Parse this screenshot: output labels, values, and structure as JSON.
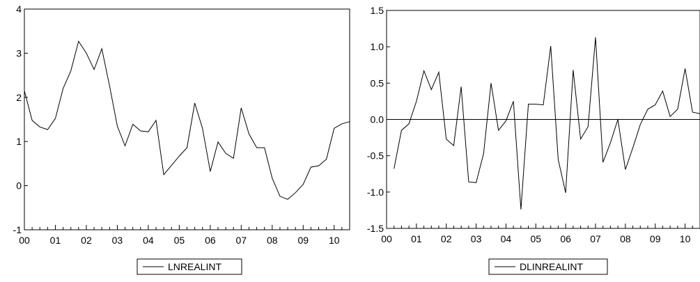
{
  "chart_data": [
    {
      "type": "line",
      "title": "",
      "xlabel": "",
      "ylabel": "",
      "ylim": [
        -1,
        4
      ],
      "y_ticks": [
        -1,
        0,
        1,
        2,
        3,
        4
      ],
      "y_tick_labels": [
        "-1",
        "0",
        "1",
        "2",
        "3",
        "4"
      ],
      "xlim": [
        0,
        10.5
      ],
      "x_ticks": [
        0,
        1,
        2,
        3,
        4,
        5,
        6,
        7,
        8,
        9,
        10
      ],
      "x_tick_labels": [
        "00",
        "01",
        "02",
        "03",
        "04",
        "05",
        "06",
        "07",
        "08",
        "09",
        "10"
      ],
      "grid": false,
      "zero_line": false,
      "legend": "bottom-center",
      "series": [
        {
          "name": "LNREALINT",
          "x": [
            0.0,
            0.25,
            0.5,
            0.75,
            1.0,
            1.25,
            1.5,
            1.75,
            2.0,
            2.25,
            2.5,
            2.75,
            3.0,
            3.25,
            3.5,
            3.75,
            4.0,
            4.25,
            4.5,
            4.75,
            5.0,
            5.25,
            5.5,
            5.75,
            6.0,
            6.25,
            6.5,
            6.75,
            7.0,
            7.25,
            7.5,
            7.75,
            8.0,
            8.25,
            8.5,
            8.75,
            9.0,
            9.25,
            9.5,
            9.75,
            10.0,
            10.25,
            10.5
          ],
          "values": [
            2.15,
            1.48,
            1.33,
            1.27,
            1.52,
            2.2,
            2.6,
            3.27,
            3.0,
            2.63,
            3.1,
            2.26,
            1.35,
            0.9,
            1.39,
            1.24,
            1.22,
            1.48,
            0.25,
            0.46,
            0.67,
            0.86,
            1.87,
            1.3,
            0.32,
            0.99,
            0.73,
            0.62,
            1.76,
            1.17,
            0.86,
            0.86,
            0.17,
            -0.24,
            -0.31,
            -0.16,
            0.03,
            0.42,
            0.45,
            0.6,
            1.3,
            1.4,
            1.45
          ]
        }
      ]
    },
    {
      "type": "line",
      "title": "",
      "xlabel": "",
      "ylabel": "",
      "ylim": [
        -1.5,
        1.5
      ],
      "y_ticks": [
        -1.5,
        -1.0,
        -0.5,
        0.0,
        0.5,
        1.0,
        1.5
      ],
      "y_tick_labels": [
        "-1.5",
        "-1.0",
        "-0.5",
        "0.0",
        "0.5",
        "1.0",
        "1.5"
      ],
      "xlim": [
        0,
        10.5
      ],
      "x_ticks": [
        0,
        1,
        2,
        3,
        4,
        5,
        6,
        7,
        8,
        9,
        10
      ],
      "x_tick_labels": [
        "00",
        "01",
        "02",
        "03",
        "04",
        "05",
        "06",
        "07",
        "08",
        "09",
        "10"
      ],
      "grid": false,
      "zero_line": true,
      "legend": "bottom-center",
      "series": [
        {
          "name": "DLINREALINT",
          "x": [
            0.25,
            0.5,
            0.75,
            1.0,
            1.25,
            1.5,
            1.75,
            2.0,
            2.25,
            2.5,
            2.75,
            3.0,
            3.25,
            3.5,
            3.75,
            4.0,
            4.25,
            4.5,
            4.75,
            5.0,
            5.25,
            5.5,
            5.75,
            6.0,
            6.25,
            6.5,
            6.75,
            7.0,
            7.25,
            7.5,
            7.75,
            8.0,
            8.25,
            8.5,
            8.75,
            9.0,
            9.25,
            9.5,
            9.75,
            10.0,
            10.25,
            10.5
          ],
          "values": [
            -0.68,
            -0.15,
            -0.06,
            0.25,
            0.67,
            0.41,
            0.65,
            -0.27,
            -0.36,
            0.45,
            -0.86,
            -0.87,
            -0.47,
            0.5,
            -0.15,
            -0.02,
            0.25,
            -1.24,
            0.21,
            0.21,
            0.2,
            1.01,
            -0.55,
            -1.01,
            0.68,
            -0.27,
            -0.1,
            1.13,
            -0.59,
            -0.32,
            0.0,
            -0.69,
            -0.39,
            -0.07,
            0.14,
            0.2,
            0.39,
            0.04,
            0.14,
            0.7,
            0.1,
            0.08
          ]
        }
      ]
    }
  ]
}
